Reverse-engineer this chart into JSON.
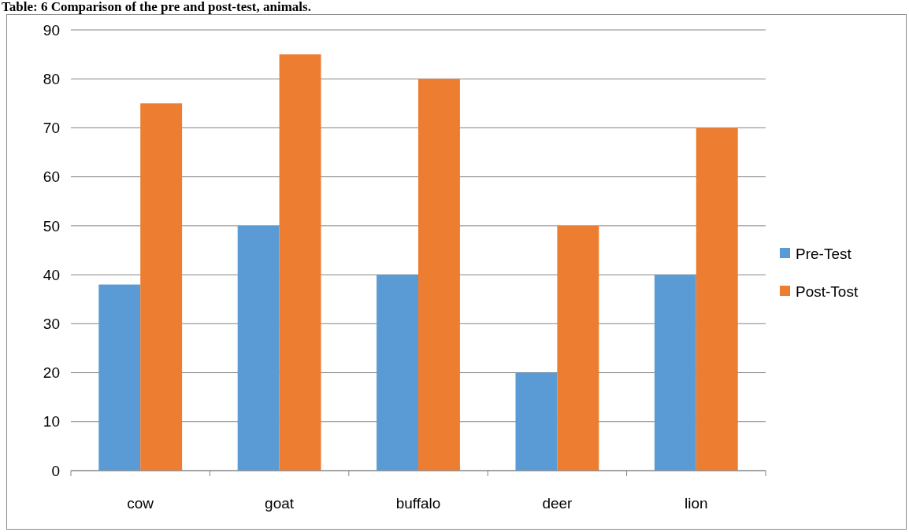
{
  "chart_data": {
    "type": "bar",
    "title": "Table: 6 Comparison of the pre and post-test, animals.",
    "categories": [
      "cow",
      "goat",
      "buffalo",
      "deer",
      "lion"
    ],
    "series": [
      {
        "name": "Pre-Test",
        "color": "#5b9bd5",
        "values": [
          38,
          50,
          40,
          20,
          40
        ]
      },
      {
        "name": "Post-Tost",
        "color": "#ed7d31",
        "values": [
          75,
          85,
          80,
          50,
          70
        ]
      }
    ],
    "ylim": [
      0,
      90
    ],
    "yticks": [
      0,
      10,
      20,
      30,
      40,
      50,
      60,
      70,
      80,
      90
    ],
    "grid": "y",
    "legend": "right"
  }
}
